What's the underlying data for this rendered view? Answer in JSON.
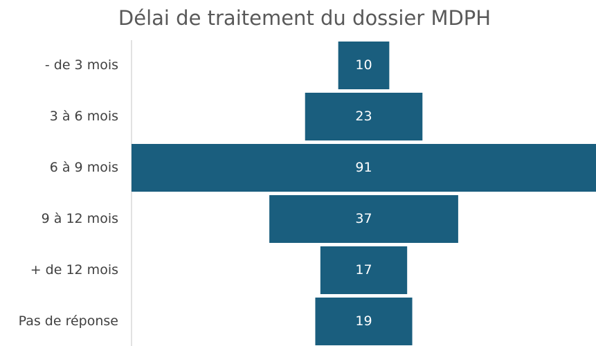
{
  "chart_data": {
    "type": "funnel",
    "title": "Délai de traitement du dossier MDPH",
    "categories": [
      "- de 3 mois",
      "3 à 6 mois",
      "6 à 9 mois",
      "9 à 12 mois",
      "+ de 12 mois",
      "Pas de réponse"
    ],
    "values": [
      10,
      23,
      91,
      37,
      17,
      19
    ],
    "color": "#1a5e7e"
  }
}
